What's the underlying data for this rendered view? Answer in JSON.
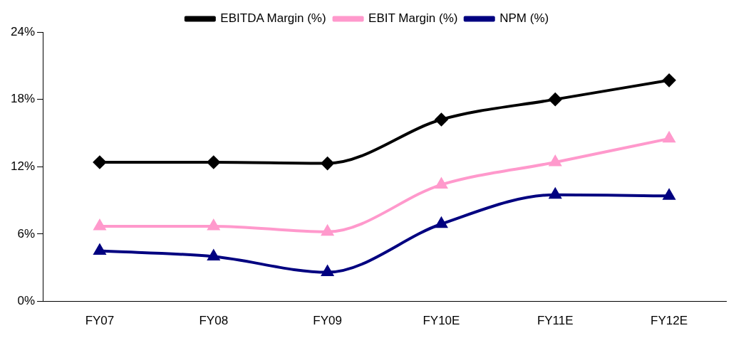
{
  "chart_data": {
    "type": "line",
    "categories": [
      "FY07",
      "FY08",
      "FY09",
      "FY10E",
      "FY11E",
      "FY12E"
    ],
    "series": [
      {
        "name": "EBITDA Margin (%)",
        "color": "#000000",
        "marker": "diamond",
        "values": [
          12.4,
          12.4,
          12.3,
          16.2,
          18.0,
          19.7
        ]
      },
      {
        "name": "EBIT Margin (%)",
        "color": "#ff99cc",
        "marker": "triangle",
        "values": [
          6.7,
          6.7,
          6.2,
          10.4,
          12.4,
          14.5
        ]
      },
      {
        "name": "NPM (%)",
        "color": "#000080",
        "marker": "triangle",
        "values": [
          4.5,
          4.0,
          2.6,
          6.9,
          9.5,
          9.4
        ]
      }
    ],
    "ylim": [
      0,
      24
    ],
    "yticks": [
      {
        "value": 0,
        "label": "0%"
      },
      {
        "value": 6,
        "label": "6%"
      },
      {
        "value": 12,
        "label": "12%"
      },
      {
        "value": 18,
        "label": "18%"
      },
      {
        "value": 24,
        "label": "24%"
      }
    ],
    "grid": false,
    "legend": "top",
    "line_style": "solid"
  }
}
